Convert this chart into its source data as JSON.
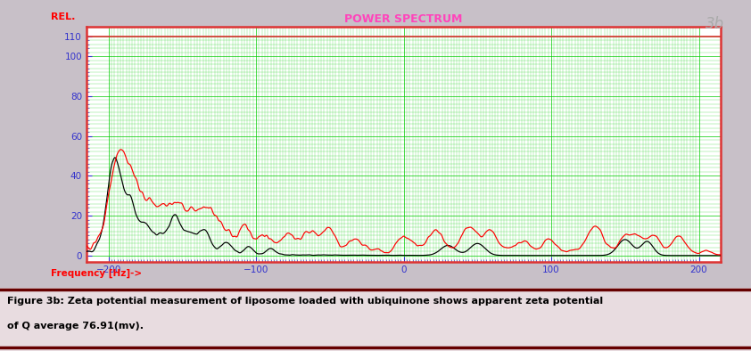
{
  "title": "POWER SPECTRUM",
  "title_color": "#FF44BB",
  "ylabel": "REL.",
  "ylabel_color": "#FF0000",
  "xlabel": "Frequency [Hz]->",
  "xlabel_color": "#FF0000",
  "label_3b": "3b",
  "label_3b_color": "#AAAAAA",
  "xmin": -215,
  "xmax": 215,
  "ymin": -3,
  "ymax": 115,
  "plot_bg": "#FFFFFF",
  "outer_bg": "#C8C0C8",
  "grid_major_color": "#00CC00",
  "grid_minor_color": "#00CC00",
  "border_color": "#DD3333",
  "tick_color": "#3333CC",
  "caption_line1": "Figure 3b: Zeta potential measurement of liposome loaded with ubiquinone shows apparent zeta potential",
  "caption_line2": "of Q average 76.91(mv).",
  "caption_color": "#000000",
  "rule_color": "#660000",
  "figure_bg": "#E8DCE0"
}
